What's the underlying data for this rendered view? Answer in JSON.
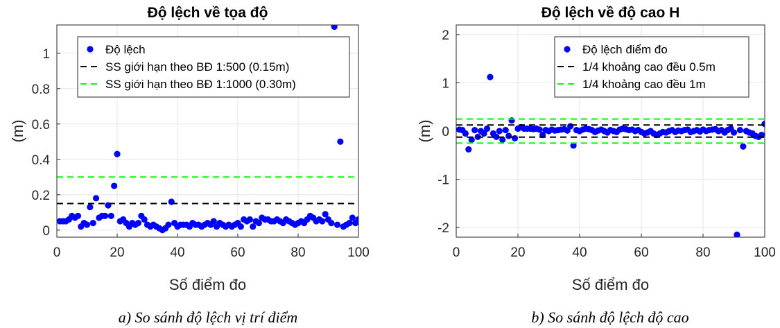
{
  "chart_data": [
    {
      "type": "scatter",
      "title": "Độ lệch về tọa độ",
      "xlabel": "Số điểm đo",
      "ylabel": "(m)",
      "caption": "a) So sánh độ lệch vị trí điểm",
      "xlim": [
        0,
        100
      ],
      "ylim": [
        -0.04,
        1.16
      ],
      "xticks": [
        "0",
        "20",
        "40",
        "60",
        "80",
        "100"
      ],
      "yticks": [
        "0",
        "0.2",
        "0.4",
        "0.6",
        "0.8",
        "1"
      ],
      "grid": true,
      "legend_position": "top-right",
      "series": [
        {
          "name": "Độ lệch",
          "kind": "points",
          "color": "#0000ff",
          "x": [
            1,
            2,
            3,
            4,
            5,
            6,
            7,
            8,
            9,
            10,
            11,
            12,
            13,
            14,
            15,
            16,
            17,
            18,
            19,
            20,
            21,
            22,
            23,
            24,
            25,
            26,
            27,
            28,
            29,
            30,
            31,
            32,
            33,
            34,
            35,
            36,
            37,
            38,
            39,
            40,
            41,
            42,
            43,
            44,
            45,
            46,
            47,
            48,
            49,
            50,
            51,
            52,
            53,
            54,
            55,
            56,
            57,
            58,
            59,
            60,
            61,
            62,
            63,
            64,
            65,
            66,
            67,
            68,
            69,
            70,
            71,
            72,
            73,
            74,
            75,
            76,
            77,
            78,
            79,
            80,
            81,
            82,
            83,
            84,
            85,
            86,
            87,
            88,
            89,
            90,
            91,
            92,
            93,
            94,
            95,
            96,
            97,
            98,
            99,
            100
          ],
          "y": [
            0.05,
            0.05,
            0.05,
            0.06,
            0.08,
            0.07,
            0.08,
            0.02,
            0.04,
            0.03,
            0.13,
            0.04,
            0.18,
            0.07,
            0.08,
            0.08,
            0.14,
            0.08,
            0.25,
            0.43,
            0.05,
            0.06,
            0.04,
            0.02,
            0.04,
            0.03,
            0.04,
            0.08,
            0.06,
            0.03,
            0.02,
            0.03,
            0.02,
            0.01,
            0.0,
            0.01,
            0.03,
            0.16,
            0.04,
            0.02,
            0.03,
            0.03,
            0.03,
            0.02,
            0.04,
            0.03,
            0.03,
            0.02,
            0.03,
            0.04,
            0.03,
            0.05,
            0.02,
            0.04,
            0.03,
            0.02,
            0.03,
            0.02,
            0.03,
            0.04,
            0.02,
            0.06,
            0.05,
            0.06,
            0.02,
            0.05,
            0.04,
            0.07,
            0.06,
            0.06,
            0.05,
            0.05,
            0.06,
            0.05,
            0.04,
            0.06,
            0.05,
            0.04,
            0.03,
            0.04,
            0.05,
            0.04,
            0.06,
            0.08,
            0.07,
            0.05,
            0.06,
            0.05,
            0.09,
            0.06,
            0.04,
            1.15,
            0.03,
            0.5,
            0.02,
            0.03,
            0.04,
            0.07,
            0.04,
            0.06
          ]
        },
        {
          "name": "SS giới hạn theo BĐ 1:500 (0.15m)",
          "kind": "hline",
          "color": "#000000",
          "y": [
            0.15
          ]
        },
        {
          "name": "SS giới hạn theo BĐ 1:1000 (0.30m)",
          "kind": "hline",
          "color": "#00ff00",
          "y": [
            0.3
          ]
        }
      ]
    },
    {
      "type": "scatter",
      "title": "Độ lệch về độ cao H",
      "xlabel": "Số điểm đo",
      "ylabel": "(m)",
      "caption": "b) So sánh độ lệch độ cao",
      "xlim": [
        0,
        100
      ],
      "ylim": [
        -2.2,
        2.2
      ],
      "xticks": [
        "0",
        "20",
        "40",
        "60",
        "80",
        "100"
      ],
      "yticks": [
        "-2",
        "-1",
        "0",
        "1",
        "2"
      ],
      "grid": true,
      "legend_position": "top-right",
      "series": [
        {
          "name": "Độ lệch điểm đo",
          "kind": "points",
          "color": "#0000ff",
          "x": [
            1,
            2,
            3,
            4,
            5,
            6,
            7,
            8,
            9,
            10,
            11,
            12,
            13,
            14,
            15,
            16,
            17,
            18,
            19,
            20,
            21,
            22,
            23,
            24,
            25,
            26,
            27,
            28,
            29,
            30,
            31,
            32,
            33,
            34,
            35,
            36,
            37,
            38,
            39,
            40,
            41,
            42,
            43,
            44,
            45,
            46,
            47,
            48,
            49,
            50,
            51,
            52,
            53,
            54,
            55,
            56,
            57,
            58,
            59,
            60,
            61,
            62,
            63,
            64,
            65,
            66,
            67,
            68,
            69,
            70,
            71,
            72,
            73,
            74,
            75,
            76,
            77,
            78,
            79,
            80,
            81,
            82,
            83,
            84,
            85,
            86,
            87,
            88,
            89,
            90,
            91,
            92,
            93,
            94,
            95,
            96,
            97,
            98,
            99,
            100
          ],
          "y": [
            0.03,
            0.02,
            -0.05,
            -0.38,
            -0.18,
            0.02,
            -0.12,
            0.0,
            -0.05,
            0.05,
            1.12,
            -0.05,
            -0.12,
            0.0,
            -0.18,
            0.02,
            -0.1,
            0.22,
            -0.15,
            0.05,
            0.08,
            0.05,
            0.05,
            0.05,
            0.04,
            0.05,
            0.03,
            -0.08,
            0.02,
            0.0,
            0.03,
            0.01,
            0.02,
            0.03,
            0.04,
            0.01,
            0.1,
            -0.3,
            0.02,
            0.0,
            0.03,
            0.05,
            0.04,
            0.02,
            -0.02,
            0.01,
            0.03,
            0.0,
            -0.03,
            0.02,
            0.0,
            -0.02,
            0.03,
            0.05,
            0.04,
            0.02,
            0.03,
            0.0,
            0.02,
            -0.02,
            -0.05,
            -0.03,
            0.0,
            -0.05,
            -0.08,
            -0.05,
            -0.02,
            -0.03,
            0.0,
            0.02,
            -0.02,
            0.01,
            0.0,
            0.02,
            0.03,
            -0.02,
            0.0,
            0.02,
            -0.01,
            0.03,
            0.0,
            0.02,
            0.03,
            0.04,
            0.0,
            0.02,
            -0.03,
            0.02,
            0.05,
            -0.03,
            -2.15,
            0.02,
            -0.32,
            0.0,
            -0.03,
            -0.05,
            -0.1,
            -0.12,
            -0.08,
            0.15
          ]
        },
        {
          "name": "1/4 khoảng cao đều 0.5m",
          "kind": "hlines",
          "color": "#000000",
          "y": [
            0.125,
            -0.125
          ]
        },
        {
          "name": "1/4 khoảng cao đều 1m",
          "kind": "hlines",
          "color": "#00ff00",
          "y": [
            0.25,
            -0.25
          ]
        }
      ]
    }
  ]
}
